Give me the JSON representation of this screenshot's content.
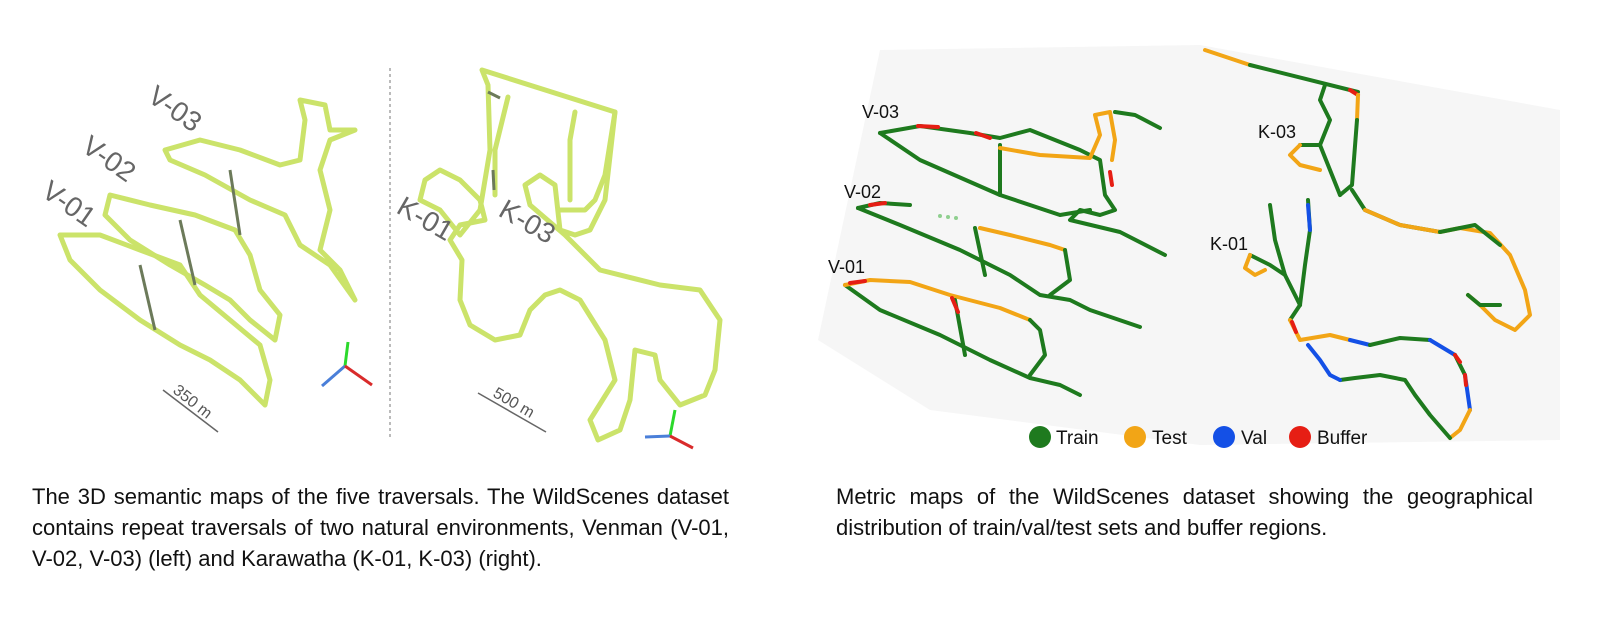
{
  "left_figure": {
    "labels": {
      "v03": "V-03",
      "v02": "V-02",
      "v01": "V-01",
      "k01": "K-01",
      "k03": "K-03"
    },
    "scale_left": "350 m",
    "scale_right": "500 m"
  },
  "right_figure": {
    "labels": {
      "v03": "V-03",
      "v02": "V-02",
      "v01": "V-01",
      "k03": "K-03",
      "k01": "K-01"
    },
    "legend": [
      {
        "label": "Train",
        "color": "#1e7a1e"
      },
      {
        "label": "Test",
        "color": "#f2a516"
      },
      {
        "label": "Val",
        "color": "#1450e6"
      },
      {
        "label": "Buffer",
        "color": "#e61e14"
      }
    ]
  },
  "captions": {
    "left": "The 3D semantic maps of the five traversals. The WildScenes dataset contains repeat traversals of two natural environments, Venman (V-01, V-02, V-03) (left) and Karawatha (K-01, K-03) (right).",
    "right": "Metric maps of the WildScenes dataset showing the geographical distribution of train/val/test sets and buffer regions."
  }
}
